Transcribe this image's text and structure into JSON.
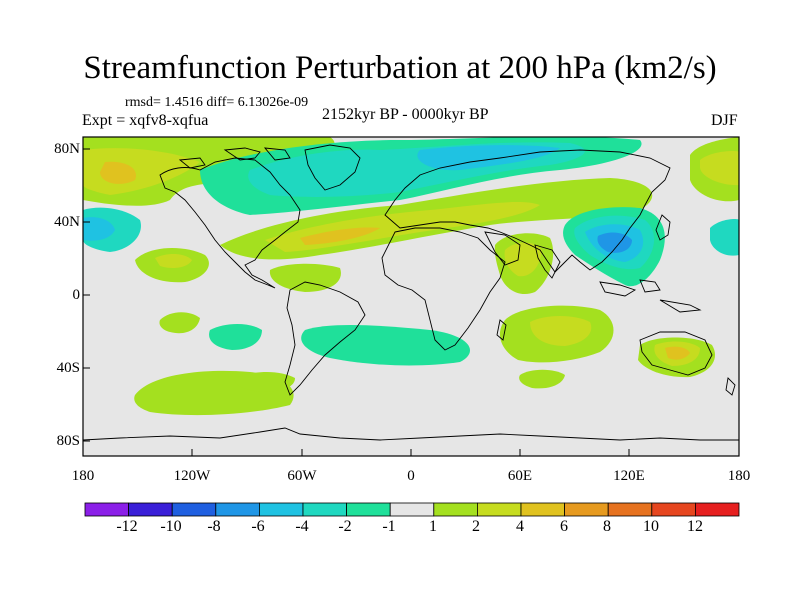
{
  "title": "Streamfunction Perturbation at 200 hPa (km2/s)",
  "stats": "rmsd= 1.4516 diff= 6.13026e-09",
  "experiment": "Expt = xqfv8-xqfua",
  "period": "2152kyr BP - 0000kyr BP",
  "season": "DJF",
  "lat_labels": [
    "80N",
    "40N",
    "0",
    "40S",
    "80S"
  ],
  "lon_labels": [
    "180",
    "120W",
    "60W",
    "0",
    "60E",
    "120E",
    "180"
  ],
  "colorbar": {
    "labels": [
      "-12",
      "-10",
      "-8",
      "-6",
      "-4",
      "-2",
      "-1",
      "1",
      "2",
      "4",
      "6",
      "8",
      "10",
      "12"
    ],
    "colors": [
      "#8b1fe8",
      "#3a1fd8",
      "#1f5fe0",
      "#1f96e6",
      "#1fc2e2",
      "#1fd8c0",
      "#1fe09a",
      "#e6e6e6",
      "#a4e01f",
      "#c6dc1f",
      "#e0c21f",
      "#e69a1f",
      "#e6721f",
      "#e6461f",
      "#e61f1f"
    ]
  },
  "colors": {
    "background": "#e6e6e6",
    "coast": "#000000"
  }
}
